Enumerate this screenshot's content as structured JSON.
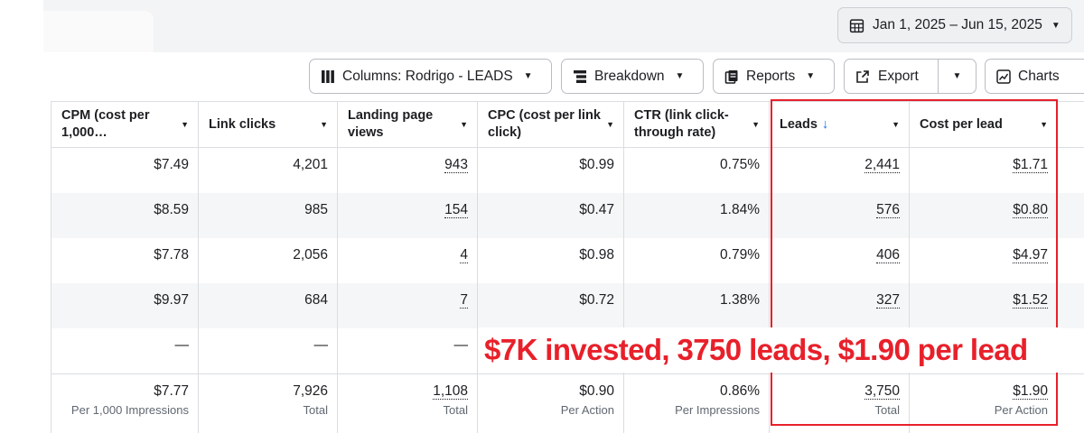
{
  "date_range": {
    "label": "Jan 1, 2025 – Jun 15, 2025"
  },
  "toolbar": {
    "columns_label": "Columns: Rodrigo - LEADS",
    "breakdown_label": "Breakdown",
    "reports_label": "Reports",
    "export_label": "Export",
    "charts_label": "Charts"
  },
  "columns": [
    {
      "label": "CPM (cost per 1,000…"
    },
    {
      "label": "Link clicks"
    },
    {
      "label": "Landing page views"
    },
    {
      "label": "CPC (cost per link click)"
    },
    {
      "label": "CTR (link click-through rate)"
    },
    {
      "label": "Leads",
      "sort": "↓"
    },
    {
      "label": "Cost per lead"
    }
  ],
  "rows": [
    {
      "cells": [
        "$7.49",
        "4,201",
        "943",
        "$0.99",
        "0.75%",
        "2,441",
        "$1.71"
      ]
    },
    {
      "cells": [
        "$8.59",
        "985",
        "154",
        "$0.47",
        "1.84%",
        "576",
        "$0.80"
      ]
    },
    {
      "cells": [
        "$7.78",
        "2,056",
        "4",
        "$0.98",
        "0.79%",
        "406",
        "$4.97"
      ]
    },
    {
      "cells": [
        "$9.97",
        "684",
        "7",
        "$0.72",
        "1.38%",
        "327",
        "$1.52"
      ]
    },
    {
      "cells": [
        "—",
        "—",
        "—",
        "",
        "",
        "",
        ""
      ]
    }
  ],
  "totals": {
    "values": [
      "$7.77",
      "7,926",
      "1,108",
      "$0.90",
      "0.86%",
      "3,750",
      "$1.90"
    ],
    "sublabels": [
      "Per 1,000 Impressions",
      "Total",
      "Total",
      "Per Action",
      "Per Impressions",
      "Total",
      "Per Action"
    ]
  },
  "annotation": {
    "text": "$7K invested, 3750 leads, $1.90 per lead",
    "color": "#e8202a"
  },
  "colors": {
    "accent_blue": "#1877f2",
    "highlight_red": "#e8202a",
    "row_alt": "#f5f6f7"
  }
}
